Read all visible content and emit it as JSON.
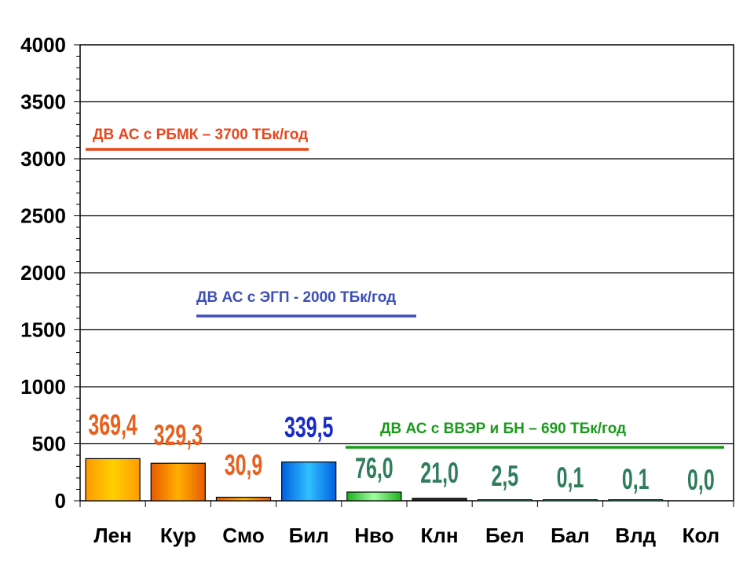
{
  "chart_data": {
    "type": "bar",
    "categories": [
      "Лен",
      "Кур",
      "Смо",
      "Бил",
      "Нво",
      "Клн",
      "Бел",
      "Бал",
      "Влд",
      "Кол"
    ],
    "values": [
      369.4,
      329.3,
      30.9,
      339.5,
      76.0,
      21.0,
      2.5,
      0.1,
      0.1,
      0.0
    ],
    "data_labels": [
      "369,4",
      "329,3",
      "30,9",
      "339,5",
      "76,0",
      "21,0",
      "2,5",
      "0,1",
      "0,1",
      "0,0"
    ],
    "yticks": [
      "0",
      "500",
      "1000",
      "1500",
      "2000",
      "2500",
      "3000",
      "3500",
      "4000"
    ],
    "ylim": [
      0,
      4000
    ],
    "grid": true,
    "title": "",
    "xlabel": "",
    "ylabel": "",
    "reference_lines": [
      {
        "label": "ДВ АС с РБМК – 3700 ТБк/год",
        "value": 3700,
        "color": "#e8461c",
        "x_range": [
          "Лен",
          "Бил"
        ]
      },
      {
        "label": "ДВ АС с ЭГП - 2000 ТБк/год",
        "value": 2000,
        "color": "#3d4fb8",
        "x_range": [
          "Смо",
          "Нво"
        ]
      },
      {
        "label": "ДВ АС с ВВЭР и БН – 690 ТБк/год",
        "value": 690,
        "color": "#1a9a1a",
        "x_range": [
          "Нво",
          "Кол"
        ]
      }
    ],
    "colors": {
      "bars": [
        "#ffb300",
        "#f07800",
        "#f07800",
        "#0a8ff0",
        "#3ed63e",
        "#222222",
        "#2e7d5b",
        "#2e7d5b",
        "#2e7d5b",
        "#2e7d5b"
      ],
      "labels": [
        "#e8601c",
        "#e8601c",
        "#e8601c",
        "#1a2ac8",
        "#2e7d5b",
        "#2e7d5b",
        "#2e7d5b",
        "#2e7d5b",
        "#2e7d5b",
        "#2e7d5b"
      ]
    }
  }
}
